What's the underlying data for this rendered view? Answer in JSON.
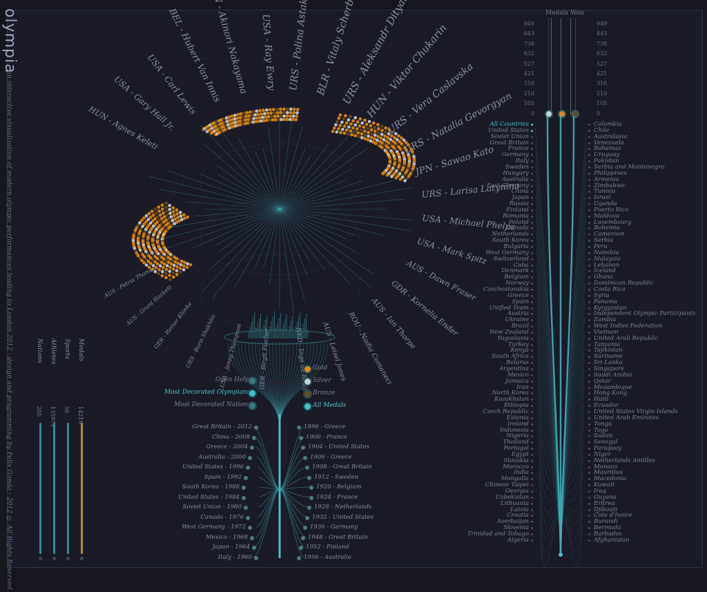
{
  "app": {
    "title": "olympia",
    "subtitle": "- an interactive visualization of modern olympic performances leading to London 2012 - design and programming by Felix Gonda - 2012 © All Rights Reserved."
  },
  "stats": [
    {
      "label": "Nations",
      "value": "205",
      "color": "#2f8e95"
    },
    {
      "label": "Athletes",
      "value": "135971",
      "color": "#2f8e95"
    },
    {
      "label": "Sports",
      "value": "56",
      "color": "#2f8e95"
    },
    {
      "label": "Medals",
      "value": "14219",
      "color": "#b08a37"
    }
  ],
  "athletes": [
    "HUN - Agnes Keleti",
    "USA - Gary Hall Jr.",
    "USA - Carl Lewis",
    "BEL - Hubert Van Innis",
    "JPN - Akinori Nakayama",
    "USA - Ray Ewry",
    "URS - Polina Astakhova",
    "BLR - Vitaly Scherbo",
    "URS - Aleksandr Dityatin",
    "HUN - Viktor Chukarin",
    "URS - Vera Caslavska",
    "URS - Natalia Gevorgyan",
    "JPN - Sawao Kato",
    "URS - Larisa Latynina",
    "USA - Michael Phelps",
    "USA - Mark Spitz",
    "AUS - Dawn Fraser",
    "GDR - Kornelia Ender",
    "AUS - Ian Thorpe",
    "ROU - Nadia Comaneci",
    "AUS - Leisel Jones",
    "NED - Inge de Bruijn",
    "GER - Birgit Fischer",
    "USA - Jenny Thompson",
    "URS - Boris Shakhlin",
    "GER - Reiner Klimke",
    "AUS - Grant Hackett",
    "AUS - Petria Thomas"
  ],
  "menu": {
    "open_help": "Open Help",
    "decorated_olympians": "Most Decorated Olympians",
    "decorated_nations": "Most Decorated Nations",
    "gold": "Gold",
    "silver": "Silver",
    "bronze": "Bronze",
    "all_medals": "All Medals"
  },
  "games_left": [
    "Great Britain - 2012",
    "China - 2008",
    "Greece - 2004",
    "Australia - 2000",
    "United States - 1996",
    "Spain - 1992",
    "South Korea - 1988",
    "United States - 1984",
    "Soviet Union - 1980",
    "Canada - 1976",
    "West Germany - 1972",
    "Mexico - 1968",
    "Japan - 1964",
    "Italy - 1960"
  ],
  "games_right": [
    "1896 - Greece",
    "1900 - France",
    "1904 - United States",
    "1906 - Greece",
    "1908 - Great Britain",
    "1912 - Sweden",
    "1920 - Belgium",
    "1924 - France",
    "1928 - Netherlands",
    "1932 - United States",
    "1936 - Germany",
    "1948 - Great Britain",
    "1952 - Finland",
    "1956 - Australia"
  ],
  "medals_won": {
    "title": "Medals Won",
    "ticks": [
      "949",
      "843",
      "738",
      "632",
      "527",
      "421",
      "316",
      "210",
      "105",
      "0"
    ]
  },
  "countries_left": [
    "All Countries",
    "United States",
    "Soviet Union",
    "Great Britain",
    "France",
    "Germany",
    "Italy",
    "Sweden",
    "Hungary",
    "Australia",
    "East Germany",
    "China",
    "Japan",
    "Russia",
    "Finland",
    "Romania",
    "Poland",
    "Canada",
    "Netherlands",
    "South Korea",
    "Bulgaria",
    "West Germany",
    "Switzerland",
    "Cuba",
    "Denmark",
    "Belgium",
    "Norway",
    "Czechoslovakia",
    "Greece",
    "Spain",
    "Unified Team",
    "Austria",
    "Ukraine",
    "Brazil",
    "New Zealand",
    "Yugoslavia",
    "Turkey",
    "Kenya",
    "South Africa",
    "Belarus",
    "Argentina",
    "Mexico",
    "Jamaica",
    "Iran",
    "North Korea",
    "Kazakhstan",
    "Ethiopia",
    "Czech Republic",
    "Estonia",
    "Ireland",
    "Indonesia",
    "Nigeria",
    "Thailand",
    "Portugal",
    "Egypt",
    "Slovakia",
    "Morocco",
    "India",
    "Mongolia",
    "Chinese Taipei",
    "Georgia",
    "Uzbekistan",
    "Lithuania",
    "Latvia",
    "Croatia",
    "Azerbaijan",
    "Slovenia",
    "Trinidad and Tobago",
    "Algeria"
  ],
  "countries_right": [
    "Colombia",
    "Chile",
    "Australasia",
    "Venezuela",
    "Bahamas",
    "Uruguay",
    "Pakistan",
    "Serbia and Montenegro",
    "Philippines",
    "Armenia",
    "Zimbabwe",
    "Tunisia",
    "Israel",
    "Uganda",
    "Puerto Rico",
    "Moldova",
    "Luxembourg",
    "Bohemia",
    "Cameroon",
    "Serbia",
    "Peru",
    "Namibia",
    "Malaysia",
    "Lebanon",
    "Iceland",
    "Ghana",
    "Dominican Republic",
    "Costa Rica",
    "Syria",
    "Panama",
    "Kyrgyzstan",
    "Independent Olympic Participants",
    "Zambia",
    "West Indies Federation",
    "Vietnam",
    "United Arab Republic",
    "Tanzania",
    "Tajikistan",
    "Suriname",
    "Sri Lanka",
    "Singapore",
    "Saudi Arabia",
    "Qatar",
    "Mozambique",
    "Hong Kong",
    "Haiti",
    "Ecuador",
    "United States Virgin Islands",
    "United Arab Emirates",
    "Tonga",
    "Togo",
    "Sudan",
    "Senegal",
    "Paraguay",
    "Niger",
    "Netherlands Antilles",
    "Monaco",
    "Mauritius",
    "Macedonia",
    "Kuwait",
    "Iraq",
    "Guyana",
    "Eritrea",
    "Djibouti",
    "Cote d'Ivoire",
    "Burundi",
    "Bermuda",
    "Barbados",
    "Afghanistan"
  ],
  "colors": {
    "gold": "#e08a12",
    "silver": "#c9cdd4",
    "bronze": "#6a4a1e",
    "accent": "#43c1c6"
  }
}
